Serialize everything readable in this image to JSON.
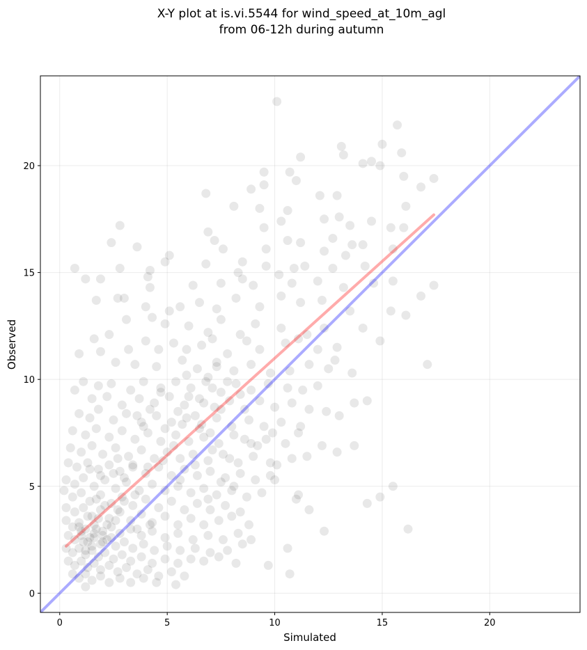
{
  "chart_data": {
    "type": "scatter",
    "title_lines": [
      "X-Y plot at is.vi.5544 for wind_speed_at_10m_agl",
      "from 06-12h during autumn"
    ],
    "xlabel": "Simulated",
    "ylabel": "Observed",
    "xlim": [
      -0.9,
      24.2
    ],
    "ylim": [
      -0.9,
      24.2
    ],
    "xticks": [
      0,
      5,
      10,
      15,
      20
    ],
    "yticks": [
      0,
      5,
      10,
      15,
      20
    ],
    "grid": true,
    "point_color": "#000000",
    "point_opacity": 0.09,
    "identity_line": {
      "x": [
        -0.9,
        24.2
      ],
      "y": [
        -0.9,
        24.2
      ],
      "color": "#0000ff",
      "opacity": 0.33
    },
    "fit_line": {
      "x": [
        0.3,
        17.4
      ],
      "y": [
        2.2,
        17.7
      ],
      "color": "#ff0000",
      "opacity": 0.33
    },
    "points": [
      [
        10.1,
        23.0
      ],
      [
        15.7,
        21.9
      ],
      [
        13.1,
        20.9
      ],
      [
        13.2,
        20.5
      ],
      [
        11.2,
        20.4
      ],
      [
        14.5,
        20.2
      ],
      [
        14.9,
        20.0
      ],
      [
        14.1,
        20.1
      ],
      [
        15.0,
        21.0
      ],
      [
        15.9,
        20.6
      ],
      [
        9.5,
        19.7
      ],
      [
        10.7,
        19.7
      ],
      [
        11.0,
        19.3
      ],
      [
        9.5,
        19.1
      ],
      [
        16.0,
        19.5
      ],
      [
        17.4,
        19.4
      ],
      [
        16.8,
        19.0
      ],
      [
        10.3,
        17.4
      ],
      [
        6.8,
        18.7
      ],
      [
        8.9,
        18.9
      ],
      [
        8.1,
        18.1
      ],
      [
        9.3,
        18.0
      ],
      [
        10.6,
        17.9
      ],
      [
        12.1,
        18.6
      ],
      [
        12.9,
        18.6
      ],
      [
        13.0,
        17.6
      ],
      [
        12.3,
        17.5
      ],
      [
        13.5,
        17.2
      ],
      [
        14.5,
        17.4
      ],
      [
        15.4,
        17.1
      ],
      [
        16.0,
        17.1
      ],
      [
        16.1,
        18.1
      ],
      [
        2.8,
        17.2
      ],
      [
        9.5,
        17.1
      ],
      [
        6.9,
        16.9
      ],
      [
        7.2,
        16.5
      ],
      [
        7.6,
        16.1
      ],
      [
        9.6,
        16.1
      ],
      [
        11.2,
        16.4
      ],
      [
        10.6,
        16.5
      ],
      [
        12.7,
        16.6
      ],
      [
        12.3,
        16.0
      ],
      [
        13.6,
        16.3
      ],
      [
        14.1,
        16.3
      ],
      [
        13.3,
        15.8
      ],
      [
        15.5,
        16.1
      ],
      [
        2.4,
        16.4
      ],
      [
        3.6,
        16.2
      ],
      [
        5.1,
        15.8
      ],
      [
        4.9,
        15.5
      ],
      [
        0.7,
        15.2
      ],
      [
        2.8,
        15.2
      ],
      [
        4.2,
        15.1
      ],
      [
        6.8,
        15.4
      ],
      [
        8.5,
        15.5
      ],
      [
        8.3,
        15.0
      ],
      [
        9.6,
        15.3
      ],
      [
        10.9,
        15.2
      ],
      [
        11.4,
        15.3
      ],
      [
        12.7,
        15.2
      ],
      [
        14.2,
        15.3
      ],
      [
        1.2,
        14.7
      ],
      [
        1.9,
        14.7
      ],
      [
        4.1,
        14.8
      ],
      [
        4.2,
        14.3
      ],
      [
        6.2,
        14.4
      ],
      [
        7.5,
        14.5
      ],
      [
        8.5,
        14.7
      ],
      [
        9.0,
        14.4
      ],
      [
        10.2,
        14.9
      ],
      [
        10.8,
        14.5
      ],
      [
        12.0,
        14.6
      ],
      [
        13.2,
        14.3
      ],
      [
        14.6,
        14.5
      ],
      [
        15.5,
        14.6
      ],
      [
        1.7,
        13.7
      ],
      [
        2.7,
        13.8
      ],
      [
        3.0,
        13.8
      ],
      [
        4.0,
        13.4
      ],
      [
        5.1,
        13.2
      ],
      [
        5.6,
        13.4
      ],
      [
        6.5,
        13.6
      ],
      [
        7.3,
        13.3
      ],
      [
        8.2,
        13.8
      ],
      [
        9.3,
        13.4
      ],
      [
        10.3,
        13.9
      ],
      [
        11.2,
        13.6
      ],
      [
        12.2,
        13.7
      ],
      [
        13.5,
        13.2
      ],
      [
        15.4,
        13.2
      ],
      [
        16.1,
        13.0
      ],
      [
        16.8,
        13.9
      ],
      [
        17.4,
        14.4
      ],
      [
        3.1,
        12.8
      ],
      [
        4.3,
        12.9
      ],
      [
        4.9,
        12.6
      ],
      [
        6.0,
        12.5
      ],
      [
        6.9,
        12.2
      ],
      [
        7.5,
        12.8
      ],
      [
        8.4,
        12.1
      ],
      [
        9.1,
        12.6
      ],
      [
        10.3,
        12.4
      ],
      [
        11.5,
        12.1
      ],
      [
        12.3,
        12.4
      ],
      [
        14.1,
        12.4
      ],
      [
        1.6,
        11.9
      ],
      [
        2.3,
        12.1
      ],
      [
        3.2,
        11.4
      ],
      [
        4.0,
        11.8
      ],
      [
        4.6,
        11.4
      ],
      [
        5.3,
        11.7
      ],
      [
        5.9,
        11.4
      ],
      [
        6.6,
        11.6
      ],
      [
        7.1,
        11.9
      ],
      [
        7.8,
        11.2
      ],
      [
        8.7,
        11.8
      ],
      [
        9.3,
        11.4
      ],
      [
        10.5,
        11.7
      ],
      [
        11.1,
        11.9
      ],
      [
        12.0,
        11.4
      ],
      [
        12.9,
        11.5
      ],
      [
        14.9,
        11.8
      ],
      [
        17.1,
        10.7
      ],
      [
        0.9,
        11.2
      ],
      [
        1.9,
        11.3
      ],
      [
        2.6,
        10.8
      ],
      [
        3.5,
        10.7
      ],
      [
        4.5,
        10.6
      ],
      [
        5.7,
        10.9
      ],
      [
        6.4,
        10.5
      ],
      [
        7.3,
        10.8
      ],
      [
        8.1,
        10.4
      ],
      [
        8.9,
        10.7
      ],
      [
        9.8,
        10.3
      ],
      [
        10.7,
        10.4
      ],
      [
        11.6,
        10.7
      ],
      [
        12.5,
        10.5
      ],
      [
        12.8,
        10.9
      ],
      [
        13.6,
        10.3
      ],
      [
        1.1,
        9.9
      ],
      [
        1.8,
        9.7
      ],
      [
        2.4,
        9.8
      ],
      [
        3.3,
        9.5
      ],
      [
        3.9,
        9.9
      ],
      [
        4.7,
        9.6
      ],
      [
        5.4,
        9.9
      ],
      [
        6.1,
        9.6
      ],
      [
        6.8,
        9.9
      ],
      [
        7.5,
        9.4
      ],
      [
        8.2,
        9.8
      ],
      [
        8.9,
        9.5
      ],
      [
        9.7,
        9.8
      ],
      [
        10.6,
        9.6
      ],
      [
        11.3,
        9.5
      ],
      [
        12.0,
        9.7
      ],
      [
        0.7,
        9.5
      ],
      [
        1.5,
        9.1
      ],
      [
        2.2,
        9.2
      ],
      [
        2.9,
        8.8
      ],
      [
        3.7,
        9.1
      ],
      [
        4.4,
        8.9
      ],
      [
        5.1,
        9.2
      ],
      [
        5.8,
        8.8
      ],
      [
        6.5,
        9.1
      ],
      [
        7.2,
        8.7
      ],
      [
        7.9,
        9.0
      ],
      [
        8.6,
        8.6
      ],
      [
        9.3,
        9.0
      ],
      [
        10.0,
        8.7
      ],
      [
        10.8,
        8.9
      ],
      [
        11.6,
        8.6
      ],
      [
        12.4,
        8.5
      ],
      [
        13.7,
        8.9
      ],
      [
        14.3,
        9.0
      ],
      [
        0.9,
        8.4
      ],
      [
        1.4,
        8.2
      ],
      [
        1.8,
        8.6
      ],
      [
        2.5,
        8.1
      ],
      [
        3.1,
        8.4
      ],
      [
        3.8,
        8.0
      ],
      [
        4.5,
        8.3
      ],
      [
        5.2,
        8.0
      ],
      [
        5.9,
        8.2
      ],
      [
        6.6,
        7.9
      ],
      [
        7.3,
        8.2
      ],
      [
        8.0,
        7.8
      ],
      [
        8.8,
        8.1
      ],
      [
        9.5,
        7.8
      ],
      [
        10.3,
        8.0
      ],
      [
        11.2,
        7.8
      ],
      [
        13.0,
        8.3
      ],
      [
        0.6,
        7.6
      ],
      [
        1.2,
        7.4
      ],
      [
        1.7,
        7.7
      ],
      [
        2.3,
        7.3
      ],
      [
        2.9,
        7.6
      ],
      [
        3.5,
        7.2
      ],
      [
        4.1,
        7.5
      ],
      [
        4.7,
        7.1
      ],
      [
        5.4,
        7.4
      ],
      [
        6.0,
        7.1
      ],
      [
        6.7,
        7.3
      ],
      [
        7.4,
        7.0
      ],
      [
        8.1,
        7.4
      ],
      [
        8.9,
        7.0
      ],
      [
        9.6,
        7.2
      ],
      [
        10.5,
        7.0
      ],
      [
        11.1,
        7.5
      ],
      [
        12.2,
        6.9
      ],
      [
        0.5,
        6.8
      ],
      [
        1.0,
        6.6
      ],
      [
        1.5,
        6.9
      ],
      [
        2.0,
        6.5
      ],
      [
        2.6,
        6.8
      ],
      [
        3.2,
        6.4
      ],
      [
        3.8,
        6.7
      ],
      [
        4.4,
        6.3
      ],
      [
        5.0,
        6.6
      ],
      [
        5.6,
        6.3
      ],
      [
        6.2,
        6.5
      ],
      [
        6.9,
        6.2
      ],
      [
        7.6,
        6.5
      ],
      [
        8.3,
        6.1
      ],
      [
        9.0,
        6.4
      ],
      [
        9.8,
        6.1
      ],
      [
        10.1,
        6.0
      ],
      [
        11.5,
        6.4
      ],
      [
        12.9,
        6.6
      ],
      [
        13.7,
        6.9
      ],
      [
        0.4,
        6.1
      ],
      [
        0.8,
        5.9
      ],
      [
        1.3,
        6.1
      ],
      [
        1.8,
        5.8
      ],
      [
        2.3,
        6.0
      ],
      [
        2.8,
        5.7
      ],
      [
        3.4,
        5.9
      ],
      [
        4.0,
        5.6
      ],
      [
        4.6,
        5.9
      ],
      [
        5.2,
        5.5
      ],
      [
        5.8,
        5.8
      ],
      [
        6.4,
        5.5
      ],
      [
        7.0,
        5.7
      ],
      [
        7.7,
        5.4
      ],
      [
        8.4,
        5.6
      ],
      [
        9.1,
        5.3
      ],
      [
        9.8,
        5.5
      ],
      [
        10.8,
        6.3
      ],
      [
        0.3,
        5.3
      ],
      [
        0.7,
        5.1
      ],
      [
        1.1,
        5.4
      ],
      [
        1.6,
        5.0
      ],
      [
        2.1,
        5.3
      ],
      [
        2.6,
        4.9
      ],
      [
        3.1,
        5.2
      ],
      [
        3.7,
        4.8
      ],
      [
        4.3,
        5.1
      ],
      [
        4.9,
        4.8
      ],
      [
        5.5,
        5.0
      ],
      [
        6.1,
        4.7
      ],
      [
        6.7,
        4.9
      ],
      [
        7.3,
        4.6
      ],
      [
        8.0,
        4.8
      ],
      [
        8.7,
        4.5
      ],
      [
        9.4,
        4.7
      ],
      [
        10.0,
        5.3
      ],
      [
        11.1,
        4.6
      ],
      [
        14.9,
        4.5
      ],
      [
        15.5,
        5.0
      ],
      [
        0.2,
        4.8
      ],
      [
        0.6,
        4.5
      ],
      [
        1.0,
        4.7
      ],
      [
        1.4,
        4.3
      ],
      [
        1.9,
        4.6
      ],
      [
        2.4,
        4.2
      ],
      [
        2.9,
        4.5
      ],
      [
        3.4,
        4.1
      ],
      [
        4.0,
        4.4
      ],
      [
        4.6,
        4.0
      ],
      [
        5.2,
        4.3
      ],
      [
        5.8,
        3.9
      ],
      [
        6.4,
        4.2
      ],
      [
        7.0,
        3.9
      ],
      [
        7.7,
        4.1
      ],
      [
        8.4,
        3.8
      ],
      [
        11.0,
        4.4
      ],
      [
        11.6,
        3.9
      ],
      [
        14.3,
        4.2
      ],
      [
        0.3,
        4.0
      ],
      [
        0.7,
        3.8
      ],
      [
        1.1,
        4.0
      ],
      [
        1.5,
        3.6
      ],
      [
        1.9,
        3.9
      ],
      [
        2.3,
        3.5
      ],
      [
        2.8,
        3.8
      ],
      [
        3.3,
        3.4
      ],
      [
        3.8,
        3.7
      ],
      [
        4.3,
        3.3
      ],
      [
        4.9,
        3.6
      ],
      [
        5.5,
        3.2
      ],
      [
        6.1,
        3.5
      ],
      [
        6.7,
        3.2
      ],
      [
        7.4,
        3.4
      ],
      [
        8.0,
        3.6
      ],
      [
        8.8,
        3.2
      ],
      [
        0.3,
        3.4
      ],
      [
        0.6,
        3.1
      ],
      [
        0.9,
        3.3
      ],
      [
        1.2,
        3.0
      ],
      [
        1.6,
        3.2
      ],
      [
        2.0,
        2.9
      ],
      [
        2.4,
        3.1
      ],
      [
        2.8,
        2.8
      ],
      [
        3.3,
        3.0
      ],
      [
        3.8,
        2.7
      ],
      [
        4.3,
        2.9
      ],
      [
        4.9,
        2.6
      ],
      [
        5.5,
        2.8
      ],
      [
        6.2,
        2.5
      ],
      [
        6.9,
        2.7
      ],
      [
        7.6,
        2.5
      ],
      [
        8.3,
        2.8
      ],
      [
        8.9,
        2.5
      ],
      [
        12.3,
        2.9
      ],
      [
        16.2,
        3.0
      ],
      [
        0.4,
        2.7
      ],
      [
        0.7,
        2.5
      ],
      [
        1.0,
        2.7
      ],
      [
        1.3,
        2.4
      ],
      [
        1.6,
        2.6
      ],
      [
        1.9,
        2.3
      ],
      [
        2.2,
        2.5
      ],
      [
        2.6,
        2.2
      ],
      [
        3.0,
        2.4
      ],
      [
        3.4,
        2.1
      ],
      [
        3.9,
        2.3
      ],
      [
        4.4,
        2.0
      ],
      [
        5.0,
        2.2
      ],
      [
        5.6,
        2.0
      ],
      [
        6.3,
        2.1
      ],
      [
        7.0,
        1.9
      ],
      [
        7.8,
        2.0
      ],
      [
        8.5,
        2.3
      ],
      [
        10.6,
        2.1
      ],
      [
        0.3,
        2.1
      ],
      [
        0.6,
        1.9
      ],
      [
        0.9,
        2.1
      ],
      [
        1.2,
        1.8
      ],
      [
        1.5,
        2.0
      ],
      [
        1.8,
        1.7
      ],
      [
        2.1,
        1.9
      ],
      [
        2.5,
        1.6
      ],
      [
        2.9,
        1.8
      ],
      [
        3.3,
        1.5
      ],
      [
        3.8,
        1.7
      ],
      [
        4.3,
        1.4
      ],
      [
        4.9,
        1.6
      ],
      [
        5.5,
        1.4
      ],
      [
        6.1,
        1.6
      ],
      [
        6.7,
        1.5
      ],
      [
        7.4,
        1.7
      ],
      [
        8.2,
        1.4
      ],
      [
        0.4,
        1.5
      ],
      [
        0.7,
        1.3
      ],
      [
        1.0,
        1.5
      ],
      [
        1.3,
        1.2
      ],
      [
        1.6,
        1.4
      ],
      [
        1.9,
        1.1
      ],
      [
        2.3,
        1.3
      ],
      [
        2.7,
        1.0
      ],
      [
        3.1,
        1.2
      ],
      [
        3.6,
        0.9
      ],
      [
        4.1,
        1.1
      ],
      [
        4.6,
        0.8
      ],
      [
        5.2,
        1.0
      ],
      [
        5.8,
        0.8
      ],
      [
        9.7,
        1.3
      ],
      [
        10.7,
        0.9
      ],
      [
        0.6,
        0.9
      ],
      [
        0.9,
        0.7
      ],
      [
        1.2,
        0.9
      ],
      [
        1.5,
        0.6
      ],
      [
        1.9,
        0.8
      ],
      [
        2.3,
        0.5
      ],
      [
        2.8,
        0.7
      ],
      [
        3.3,
        0.5
      ],
      [
        3.9,
        0.7
      ],
      [
        4.5,
        0.5
      ],
      [
        5.4,
        0.4
      ],
      [
        1.2,
        0.3
      ],
      [
        1.0,
        2.9
      ],
      [
        1.4,
        2.6
      ],
      [
        1.7,
        3.0
      ],
      [
        2.0,
        2.7
      ],
      [
        1.1,
        2.4
      ],
      [
        1.5,
        2.2
      ],
      [
        2.2,
        3.2
      ],
      [
        2.6,
        3.4
      ],
      [
        1.8,
        3.5
      ],
      [
        1.3,
        3.6
      ],
      [
        0.9,
        3.1
      ],
      [
        2.4,
        2.6
      ],
      [
        1.6,
        2.8
      ],
      [
        2.0,
        2.4
      ],
      [
        1.2,
        2.0
      ],
      [
        2.7,
        3.9
      ],
      [
        3.0,
        4.3
      ],
      [
        2.1,
        4.1
      ],
      [
        1.7,
        4.4
      ],
      [
        3.5,
        4.6
      ],
      [
        6.0,
        9.2
      ],
      [
        6.7,
        8.9
      ],
      [
        7.1,
        9.6
      ],
      [
        7.5,
        8.6
      ],
      [
        6.3,
        8.3
      ],
      [
        7.8,
        9.9
      ],
      [
        5.5,
        8.5
      ],
      [
        6.9,
        10.1
      ],
      [
        7.3,
        10.6
      ],
      [
        5.9,
        10.2
      ],
      [
        8.4,
        9.3
      ],
      [
        6.5,
        7.7
      ],
      [
        5.7,
        7.9
      ],
      [
        7.0,
        7.5
      ],
      [
        4.9,
        7.7
      ],
      [
        4.2,
        8.6
      ],
      [
        3.6,
        8.3
      ],
      [
        4.7,
        9.4
      ],
      [
        3.9,
        7.8
      ],
      [
        5.3,
        6.9
      ],
      [
        3.4,
        6.0
      ],
      [
        2.7,
        6.3
      ],
      [
        4.1,
        5.9
      ],
      [
        4.8,
        6.2
      ],
      [
        3.0,
        5.4
      ],
      [
        2.5,
        5.6
      ],
      [
        1.9,
        5.5
      ],
      [
        1.4,
        5.8
      ],
      [
        5.6,
        5.3
      ],
      [
        6.3,
        6.0
      ],
      [
        7.1,
        6.7
      ],
      [
        7.9,
        6.3
      ],
      [
        8.6,
        7.2
      ],
      [
        9.2,
        6.9
      ],
      [
        9.9,
        7.5
      ],
      [
        8.1,
        5.0
      ],
      [
        6.9,
        4.4
      ],
      [
        7.5,
        5.2
      ],
      [
        3.6,
        3.0
      ],
      [
        4.2,
        3.2
      ]
    ]
  }
}
